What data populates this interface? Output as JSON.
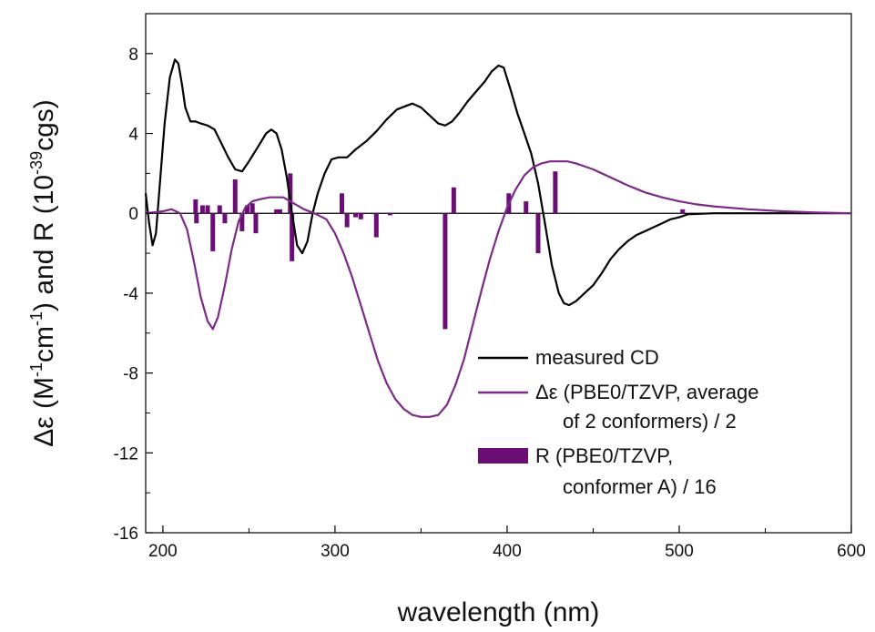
{
  "chart_data": {
    "type": "line",
    "xlabel": "wavelength (nm)",
    "ylabel_parts": [
      "Δε (M",
      "-1",
      "cm",
      "-1",
      ") and R (10",
      "-39",
      "cgs)"
    ],
    "xlim": [
      190,
      600
    ],
    "ylim": [
      -16,
      10
    ],
    "x_ticks": [
      200,
      300,
      400,
      500,
      600
    ],
    "y_ticks": [
      -16,
      -12,
      -8,
      -4,
      0,
      4,
      8
    ],
    "colors": {
      "measured": "#000000",
      "computed": "#7b2a87",
      "bars": "#6a0d75"
    },
    "series": [
      {
        "name": "measured CD",
        "kind": "line",
        "points": [
          [
            190,
            1.0
          ],
          [
            192,
            -0.5
          ],
          [
            194,
            -1.6
          ],
          [
            196,
            -1.0
          ],
          [
            198,
            1.2
          ],
          [
            201,
            4.5
          ],
          [
            204,
            6.8
          ],
          [
            207,
            7.7
          ],
          [
            209,
            7.5
          ],
          [
            211,
            6.5
          ],
          [
            213,
            5.3
          ],
          [
            216,
            4.6
          ],
          [
            219,
            4.6
          ],
          [
            222,
            4.5
          ],
          [
            226,
            4.4
          ],
          [
            230,
            4.2
          ],
          [
            234,
            3.5
          ],
          [
            238,
            2.8
          ],
          [
            242,
            2.2
          ],
          [
            246,
            2.1
          ],
          [
            250,
            2.6
          ],
          [
            255,
            3.3
          ],
          [
            260,
            4.0
          ],
          [
            263,
            4.2
          ],
          [
            266,
            4.0
          ],
          [
            269,
            3.2
          ],
          [
            272,
            1.8
          ],
          [
            275,
            0.0
          ],
          [
            278,
            -1.6
          ],
          [
            281,
            -2.0
          ],
          [
            284,
            -1.4
          ],
          [
            287,
            0.0
          ],
          [
            290,
            1.0
          ],
          [
            294,
            2.0
          ],
          [
            298,
            2.7
          ],
          [
            302,
            2.8
          ],
          [
            307,
            2.8
          ],
          [
            312,
            3.2
          ],
          [
            318,
            3.6
          ],
          [
            324,
            4.1
          ],
          [
            330,
            4.7
          ],
          [
            336,
            5.2
          ],
          [
            342,
            5.4
          ],
          [
            345,
            5.5
          ],
          [
            350,
            5.3
          ],
          [
            355,
            4.9
          ],
          [
            360,
            4.5
          ],
          [
            364,
            4.4
          ],
          [
            368,
            4.6
          ],
          [
            372,
            5.0
          ],
          [
            377,
            5.6
          ],
          [
            382,
            6.1
          ],
          [
            387,
            6.6
          ],
          [
            391,
            7.1
          ],
          [
            395,
            7.4
          ],
          [
            398,
            7.3
          ],
          [
            402,
            6.2
          ],
          [
            406,
            5.0
          ],
          [
            410,
            4.0
          ],
          [
            414,
            3.0
          ],
          [
            418,
            1.5
          ],
          [
            422,
            -0.5
          ],
          [
            426,
            -2.6
          ],
          [
            430,
            -4.0
          ],
          [
            433,
            -4.5
          ],
          [
            436,
            -4.6
          ],
          [
            440,
            -4.4
          ],
          [
            445,
            -4.0
          ],
          [
            450,
            -3.6
          ],
          [
            455,
            -3.0
          ],
          [
            460,
            -2.3
          ],
          [
            465,
            -1.8
          ],
          [
            470,
            -1.4
          ],
          [
            475,
            -1.1
          ],
          [
            480,
            -0.9
          ],
          [
            485,
            -0.7
          ],
          [
            490,
            -0.5
          ],
          [
            495,
            -0.3
          ],
          [
            500,
            -0.2
          ],
          [
            505,
            -0.05
          ],
          [
            520,
            0.0
          ],
          [
            550,
            0.0
          ],
          [
            600,
            0.0
          ]
        ]
      },
      {
        "name": "Δε (PBE0/TZVP, average of 2 conformers) / 2",
        "kind": "line",
        "points": [
          [
            190,
            0.0
          ],
          [
            200,
            0.1
          ],
          [
            205,
            0.2
          ],
          [
            210,
            0.0
          ],
          [
            214,
            -0.8
          ],
          [
            218,
            -2.4
          ],
          [
            222,
            -4.2
          ],
          [
            226,
            -5.4
          ],
          [
            229,
            -5.8
          ],
          [
            232,
            -5.2
          ],
          [
            236,
            -3.6
          ],
          [
            240,
            -1.8
          ],
          [
            244,
            -0.4
          ],
          [
            248,
            0.3
          ],
          [
            252,
            0.6
          ],
          [
            256,
            0.7
          ],
          [
            262,
            0.8
          ],
          [
            266,
            0.8
          ],
          [
            270,
            0.8
          ],
          [
            276,
            0.5
          ],
          [
            282,
            0.2
          ],
          [
            288,
            0.0
          ],
          [
            295,
            -0.3
          ],
          [
            300,
            -1.0
          ],
          [
            305,
            -2.0
          ],
          [
            310,
            -3.2
          ],
          [
            315,
            -4.6
          ],
          [
            320,
            -6.0
          ],
          [
            325,
            -7.4
          ],
          [
            330,
            -8.5
          ],
          [
            335,
            -9.3
          ],
          [
            340,
            -9.8
          ],
          [
            345,
            -10.1
          ],
          [
            350,
            -10.2
          ],
          [
            355,
            -10.2
          ],
          [
            360,
            -10.1
          ],
          [
            365,
            -9.6
          ],
          [
            370,
            -8.6
          ],
          [
            375,
            -7.3
          ],
          [
            380,
            -5.6
          ],
          [
            385,
            -3.9
          ],
          [
            390,
            -2.3
          ],
          [
            395,
            -0.9
          ],
          [
            400,
            0.3
          ],
          [
            405,
            1.2
          ],
          [
            410,
            1.9
          ],
          [
            415,
            2.3
          ],
          [
            420,
            2.5
          ],
          [
            425,
            2.6
          ],
          [
            430,
            2.6
          ],
          [
            435,
            2.6
          ],
          [
            440,
            2.5
          ],
          [
            450,
            2.2
          ],
          [
            460,
            1.8
          ],
          [
            470,
            1.4
          ],
          [
            480,
            1.05
          ],
          [
            490,
            0.8
          ],
          [
            500,
            0.6
          ],
          [
            510,
            0.45
          ],
          [
            520,
            0.35
          ],
          [
            540,
            0.2
          ],
          [
            560,
            0.1
          ],
          [
            580,
            0.04
          ],
          [
            600,
            0.0
          ]
        ]
      },
      {
        "name": "R (PBE0/TZVP, conformer A) / 16",
        "kind": "bar",
        "points": [
          [
            219,
            0.7
          ],
          [
            219.5,
            -0.5
          ],
          [
            223,
            0.4
          ],
          [
            226,
            0.4
          ],
          [
            229,
            -1.9
          ],
          [
            233,
            0.4
          ],
          [
            236,
            -0.5
          ],
          [
            242,
            1.7
          ],
          [
            246,
            -0.9
          ],
          [
            249,
            0.4
          ],
          [
            252,
            0.5
          ],
          [
            254,
            -1.0
          ],
          [
            266,
            0.2
          ],
          [
            268,
            0.2
          ],
          [
            274,
            2.0
          ],
          [
            275,
            -2.4
          ],
          [
            304,
            1.0
          ],
          [
            307,
            -0.7
          ],
          [
            312,
            -0.2
          ],
          [
            315,
            -0.3
          ],
          [
            324,
            -1.2
          ],
          [
            332,
            -0.1
          ],
          [
            364,
            -5.8
          ],
          [
            369,
            1.3
          ],
          [
            401,
            1.0
          ],
          [
            411,
            0.6
          ],
          [
            418,
            -2.0
          ],
          [
            428,
            2.1
          ],
          [
            502,
            0.2
          ]
        ]
      }
    ],
    "legend": {
      "placement": "bottom-right",
      "entries": [
        {
          "label_lines": [
            "measured CD"
          ],
          "swatch": "line",
          "color": "#000000"
        },
        {
          "label_lines": [
            "Δε (PBE0/TZVP, average",
            "of 2 conformers) / 2"
          ],
          "swatch": "line",
          "color": "#7b2a87"
        },
        {
          "label_lines": [
            "R (PBE0/TZVP,",
            "conformer A) / 16"
          ],
          "swatch": "bar",
          "color": "#6a0d75"
        }
      ]
    }
  }
}
